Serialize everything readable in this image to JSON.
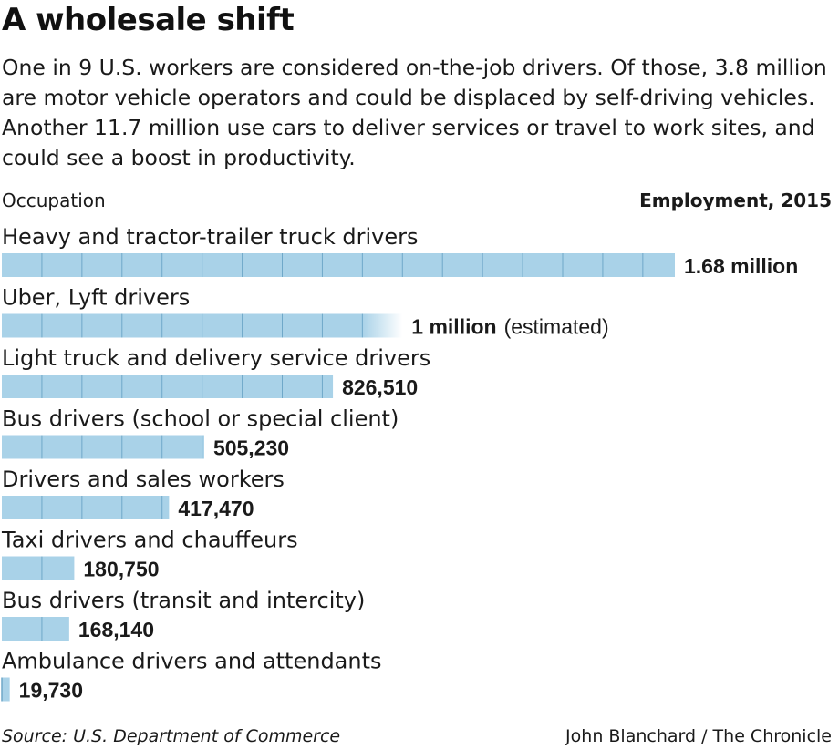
{
  "title": "A wholesale shift",
  "subtitle": "One in 9 U.S. workers are considered on-the-job drivers. Of those, 3.8 million are motor vehicle operators and could be displaced by self-driving vehicles. Another 11.7 million use cars to deliver services or travel to work sites, and could see a boost in productivity.",
  "column_left": "Occupation",
  "column_right": "Employment, 2015",
  "colors": {
    "bar": "#a9d2e8",
    "divider": "#6fa8c9",
    "text": "#1a1a1a"
  },
  "chart_data": {
    "type": "bar",
    "orientation": "horizontal",
    "categories": [
      "Heavy and tractor-trailer truck drivers",
      "Uber, Lyft drivers",
      "Light truck and delivery service drivers",
      "Bus drivers (school or special client)",
      "Drivers and sales workers",
      "Taxi drivers and chauffeurs",
      "Bus drivers (transit and intercity)",
      "Ambulance drivers and attendants"
    ],
    "values": [
      1680000,
      1000000,
      826510,
      505230,
      417470,
      180750,
      168140,
      19730
    ],
    "value_labels": [
      "1.68 million",
      "1 million",
      "826,510",
      "505,230",
      "417,470",
      "180,750",
      "168,140",
      "19,730"
    ],
    "value_notes": [
      "",
      "(estimated)",
      "",
      "",
      "",
      "",
      "",
      ""
    ],
    "tick_interval": 100000,
    "fade_last_segment": [
      false,
      true,
      false,
      false,
      false,
      false,
      false,
      false
    ],
    "xlabel": "",
    "ylabel": "",
    "grid": false,
    "legend": "none"
  },
  "footer": {
    "source": "Source: U.S. Department of Commerce",
    "credit": "John Blanchard / The Chronicle"
  }
}
